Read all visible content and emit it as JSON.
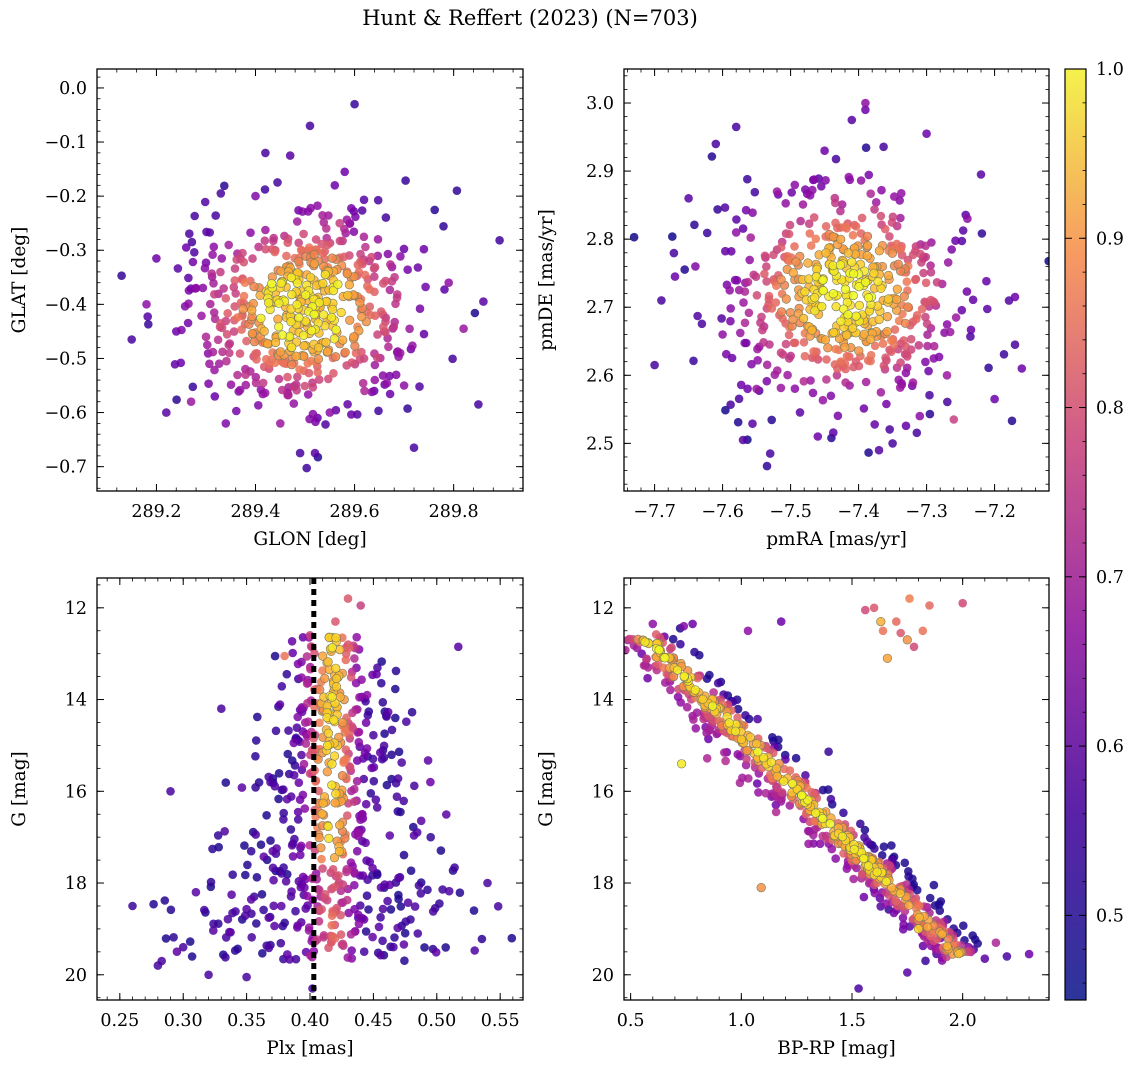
{
  "figure": {
    "title": "Hunt & Reffert (2023) (N=703)"
  },
  "colorbar": {
    "colormap": "plasma",
    "range": [
      0.45,
      1.0
    ],
    "ticks": [
      0.5,
      0.6,
      0.7,
      0.8,
      0.9,
      1.0
    ],
    "tick_labels": [
      "0.5",
      "0.6",
      "0.7",
      "0.8",
      "0.9",
      "1.0"
    ]
  },
  "chart_data": [
    {
      "id": "sky",
      "type": "scatter",
      "xlabel": "GLON [deg]",
      "ylabel": "GLAT [deg]",
      "xlim": [
        289.08,
        289.94
      ],
      "ylim": [
        -0.745,
        0.035
      ],
      "y_inverted": false,
      "xticks": [
        289.2,
        289.4,
        289.6,
        289.8
      ],
      "xtick_labels": [
        "289.2",
        "289.4",
        "289.6",
        "289.8"
      ],
      "yticks": [
        0.0,
        -0.1,
        -0.2,
        -0.3,
        -0.4,
        -0.5,
        -0.6,
        -0.7
      ],
      "ytick_labels": [
        "0.0",
        "−0.1",
        "−0.2",
        "−0.3",
        "−0.4",
        "−0.5",
        "−0.6",
        "−0.7"
      ],
      "points": [
        [
          289.15,
          -0.465,
          0.5
        ],
        [
          289.22,
          -0.6,
          0.52
        ],
        [
          289.26,
          -0.295,
          0.55
        ],
        [
          289.33,
          -0.195,
          0.5
        ],
        [
          289.42,
          -0.12,
          0.5
        ],
        [
          289.47,
          -0.125,
          0.52
        ],
        [
          289.51,
          -0.07,
          0.5
        ],
        [
          289.6,
          -0.03,
          0.48
        ],
        [
          289.58,
          -0.155,
          0.55
        ],
        [
          289.72,
          -0.665,
          0.5
        ],
        [
          289.86,
          -0.395,
          0.52
        ],
        [
          289.85,
          -0.585,
          0.5
        ],
        [
          289.49,
          -0.675,
          0.5
        ],
        [
          289.52,
          -0.675,
          0.52
        ],
        [
          289.74,
          -0.298,
          0.55
        ],
        [
          289.79,
          -0.36,
          0.6
        ],
        [
          289.82,
          -0.445,
          0.62
        ],
        [
          289.2,
          -0.315,
          0.55
        ],
        [
          289.18,
          -0.4,
          0.6
        ],
        [
          289.27,
          -0.58,
          0.62
        ],
        [
          289.3,
          -0.46,
          0.65
        ],
        [
          289.36,
          -0.38,
          0.7
        ],
        [
          289.38,
          -0.53,
          0.68
        ],
        [
          289.44,
          -0.3,
          0.72
        ],
        [
          289.57,
          -0.25,
          0.7
        ],
        [
          289.63,
          -0.32,
          0.68
        ],
        [
          289.66,
          -0.45,
          0.7
        ],
        [
          289.62,
          -0.56,
          0.65
        ],
        [
          289.55,
          -0.6,
          0.6
        ],
        [
          289.45,
          -0.62,
          0.62
        ],
        [
          289.34,
          -0.62,
          0.58
        ],
        [
          289.7,
          -0.55,
          0.6
        ],
        [
          289.28,
          -0.37,
          0.6
        ],
        [
          289.24,
          -0.45,
          0.55
        ],
        [
          289.4,
          -0.2,
          0.58
        ],
        [
          289.56,
          -0.18,
          0.55
        ]
      ],
      "cluster": {
        "cx": 289.5,
        "cy": -0.41,
        "sx": 0.12,
        "sy": 0.095,
        "n": 560
      }
    },
    {
      "id": "pm",
      "type": "scatter",
      "xlabel": "pmRA [mas/yr]",
      "ylabel": "pmDE [mas/yr]",
      "xlim": [
        -7.745,
        -7.12
      ],
      "ylim": [
        2.43,
        3.05
      ],
      "y_inverted": false,
      "xticks": [
        -7.7,
        -7.6,
        -7.5,
        -7.4,
        -7.3,
        -7.2
      ],
      "xtick_labels": [
        "−7.7",
        "−7.6",
        "−7.5",
        "−7.4",
        "−7.3",
        "−7.2"
      ],
      "yticks": [
        2.5,
        2.6,
        2.7,
        2.8,
        2.9,
        3.0
      ],
      "ytick_labels": [
        "2.5",
        "2.6",
        "2.7",
        "2.8",
        "2.9",
        "3.0"
      ],
      "points": [
        [
          -7.7,
          2.615,
          0.5
        ],
        [
          -7.69,
          2.71,
          0.5
        ],
        [
          -7.65,
          2.86,
          0.52
        ],
        [
          -7.61,
          2.94,
          0.5
        ],
        [
          -7.58,
          2.965,
          0.5
        ],
        [
          -7.57,
          2.505,
          0.52
        ],
        [
          -7.53,
          2.485,
          0.5
        ],
        [
          -7.39,
          3.0,
          0.6
        ],
        [
          -7.39,
          2.99,
          0.55
        ],
        [
          -7.41,
          2.975,
          0.52
        ],
        [
          -7.3,
          2.955,
          0.55
        ],
        [
          -7.22,
          2.895,
          0.52
        ],
        [
          -7.17,
          2.715,
          0.55
        ],
        [
          -7.17,
          2.645,
          0.5
        ],
        [
          -7.16,
          2.61,
          0.55
        ],
        [
          -7.26,
          2.535,
          0.7
        ],
        [
          -7.35,
          2.5,
          0.5
        ],
        [
          -7.37,
          2.49,
          0.52
        ],
        [
          -7.46,
          2.51,
          0.55
        ],
        [
          -7.67,
          2.745,
          0.55
        ],
        [
          -7.6,
          2.66,
          0.6
        ],
        [
          -7.64,
          2.76,
          0.58
        ],
        [
          -7.24,
          2.83,
          0.6
        ],
        [
          -7.27,
          2.6,
          0.62
        ],
        [
          -7.31,
          2.54,
          0.6
        ],
        [
          -7.55,
          2.58,
          0.62
        ],
        [
          -7.52,
          2.87,
          0.62
        ],
        [
          -7.58,
          2.81,
          0.6
        ],
        [
          -7.2,
          2.565,
          0.55
        ],
        [
          -7.45,
          2.93,
          0.55
        ]
      ],
      "cluster": {
        "cx": -7.42,
        "cy": 2.72,
        "sx": 0.085,
        "sy": 0.085,
        "n": 560
      }
    },
    {
      "id": "plx",
      "type": "scatter",
      "xlabel": "Plx [mas]",
      "ylabel": "G [mag]",
      "xlim": [
        0.232,
        0.568
      ],
      "ylim": [
        20.55,
        11.35
      ],
      "y_inverted": true,
      "vline": {
        "x": 0.403,
        "style": "dotted",
        "color": "#000000"
      },
      "xticks": [
        0.25,
        0.3,
        0.35,
        0.4,
        0.45,
        0.5,
        0.55
      ],
      "xtick_labels": [
        "0.25",
        "0.30",
        "0.35",
        "0.40",
        "0.45",
        "0.50",
        "0.55"
      ],
      "yticks": [
        12,
        14,
        16,
        18,
        20
      ],
      "ytick_labels": [
        "12",
        "14",
        "16",
        "18",
        "20"
      ],
      "points": [
        [
          0.26,
          18.5,
          0.48
        ],
        [
          0.28,
          19.8,
          0.5
        ],
        [
          0.283,
          19.7,
          0.5
        ],
        [
          0.29,
          16.0,
          0.5
        ],
        [
          0.32,
          20.0,
          0.5
        ],
        [
          0.517,
          12.85,
          0.52
        ],
        [
          0.54,
          18.0,
          0.5
        ],
        [
          0.495,
          15.8,
          0.55
        ],
        [
          0.33,
          14.2,
          0.5
        ],
        [
          0.485,
          19.1,
          0.5
        ],
        [
          0.3,
          19.4,
          0.5
        ],
        [
          0.31,
          18.2,
          0.52
        ],
        [
          0.43,
          11.8,
          0.75
        ],
        [
          0.44,
          11.95,
          0.7
        ],
        [
          0.38,
          13.05,
          0.8
        ],
        [
          0.4,
          12.6,
          0.7
        ],
        [
          0.42,
          12.3,
          0.75
        ],
        [
          0.445,
          13.9,
          0.6
        ],
        [
          0.35,
          20.05,
          0.5
        ],
        [
          0.402,
          20.3,
          0.5
        ]
      ],
      "cluster": {
        "cx": 0.405,
        "n": 600
      }
    },
    {
      "id": "cmd",
      "type": "scatter",
      "xlabel": "BP-RP [mag]",
      "ylabel": "G [mag]",
      "xlim": [
        0.47,
        2.39
      ],
      "ylim": [
        20.55,
        11.35
      ],
      "y_inverted": true,
      "xticks": [
        0.5,
        1.0,
        1.5,
        2.0
      ],
      "xtick_labels": [
        "0.5",
        "1.0",
        "1.5",
        "2.0"
      ],
      "yticks": [
        12,
        14,
        16,
        18,
        20
      ],
      "ytick_labels": [
        "12",
        "14",
        "16",
        "18",
        "20"
      ],
      "points": [
        [
          1.56,
          12.05,
          0.72
        ],
        [
          1.6,
          12.0,
          0.75
        ],
        [
          1.64,
          12.5,
          0.8
        ],
        [
          1.66,
          13.1,
          0.88
        ],
        [
          1.7,
          12.3,
          0.78
        ],
        [
          1.75,
          12.7,
          0.85
        ],
        [
          1.76,
          11.8,
          0.82
        ],
        [
          1.82,
          12.5,
          0.8
        ],
        [
          1.85,
          11.95,
          0.78
        ],
        [
          2.0,
          11.9,
          0.72
        ],
        [
          1.63,
          12.3,
          0.9
        ],
        [
          1.72,
          12.55,
          0.75
        ],
        [
          1.78,
          12.85,
          0.72
        ],
        [
          0.73,
          15.4,
          0.98
        ],
        [
          1.09,
          18.1,
          0.85
        ],
        [
          1.18,
          12.3,
          0.55
        ],
        [
          2.15,
          19.3,
          0.65
        ],
        [
          2.3,
          19.55,
          0.55
        ],
        [
          2.2,
          19.6,
          0.5
        ],
        [
          2.1,
          19.65,
          0.52
        ],
        [
          1.53,
          20.3,
          0.5
        ],
        [
          1.75,
          19.95,
          0.52
        ],
        [
          1.9,
          19.2,
          0.55
        ],
        [
          2.05,
          19.45,
          0.5
        ],
        [
          0.55,
          13.0,
          0.55
        ],
        [
          0.6,
          12.35,
          0.6
        ],
        [
          0.64,
          12.65,
          0.62
        ],
        [
          0.78,
          12.35,
          0.55
        ],
        [
          1.03,
          12.5,
          0.6
        ],
        [
          0.74,
          12.4,
          0.58
        ],
        [
          1.8,
          19.0,
          0.95
        ]
      ],
      "cluster": {
        "n": 620
      }
    }
  ]
}
